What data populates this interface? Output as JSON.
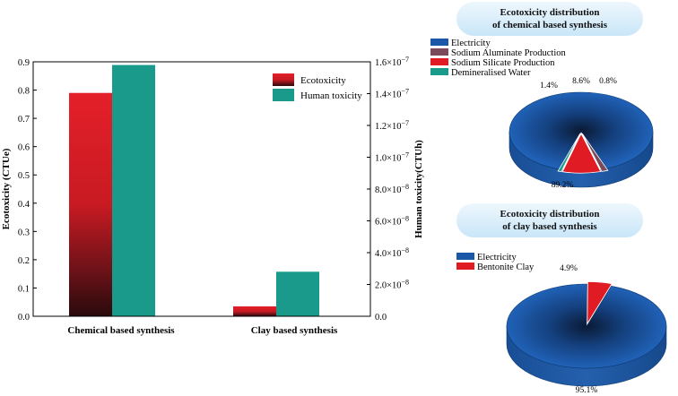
{
  "colors": {
    "ecotoxicity": "#e01b24",
    "human_toxicity": "#1a9a8a",
    "electricity": "#1b57a8",
    "sodium_aluminate": "#7a4a5a",
    "sodium_silicate": "#e01b24",
    "demineralised_water": "#1a9a8a",
    "bentonite_clay": "#e01b24",
    "pill_bg": "#c9e6f8"
  },
  "chart_data": [
    {
      "type": "bar",
      "categories": [
        "Chemical based synthesis",
        "Clay based synthesis"
      ],
      "series": [
        {
          "name": "Ecotoxicity",
          "axis": "left",
          "values": [
            0.79,
            0.035
          ]
        },
        {
          "name": "Human toxicity",
          "axis": "right",
          "values": [
            1.58e-07,
            2.8e-08
          ]
        }
      ],
      "ylabel": "Ecotoxicity (CTUe)",
      "ylim": [
        0,
        0.9
      ],
      "yticks": [
        "0.0",
        "0.1",
        "0.2",
        "0.3",
        "0.4",
        "0.5",
        "0.6",
        "0.7",
        "0.8",
        "0.9"
      ],
      "y2label": "Human toxicity(CTUh)",
      "y2lim": [
        0,
        1.6e-07
      ],
      "y2ticks": [
        {
          "base": "0.0",
          "exp": ""
        },
        {
          "base": "2.0×10",
          "exp": "−8"
        },
        {
          "base": "4.0×10",
          "exp": "−8"
        },
        {
          "base": "6.0×10",
          "exp": "−8"
        },
        {
          "base": "8.0×10",
          "exp": "−8"
        },
        {
          "base": "1.0×10",
          "exp": "−7"
        },
        {
          "base": "1.2×10",
          "exp": "−7"
        },
        {
          "base": "1.4×10",
          "exp": "−7"
        },
        {
          "base": "1.6×10",
          "exp": "−7"
        }
      ],
      "grid": false,
      "legend_position": "top-right"
    },
    {
      "type": "pie",
      "title": [
        "Ecotoxicity distribution",
        "of chemical based synthesis"
      ],
      "labels": [
        "Electricity",
        "Sodium Aluminate Production",
        "Sodium Silicate Production",
        "Demineralised Water"
      ],
      "values": [
        89.2,
        1.4,
        8.6,
        0.8
      ],
      "value_labels": [
        "89.2%",
        "1.4%",
        "8.6%",
        "0.8%"
      ],
      "legend_position": "top-left"
    },
    {
      "type": "pie",
      "title": [
        "Ecotoxicity distribution",
        "of clay based synthesis"
      ],
      "labels": [
        "Electricity",
        "Bentonite Clay"
      ],
      "values": [
        95.1,
        4.9
      ],
      "value_labels": [
        "95.1%",
        "4.9%"
      ],
      "legend_position": "top-left"
    }
  ]
}
